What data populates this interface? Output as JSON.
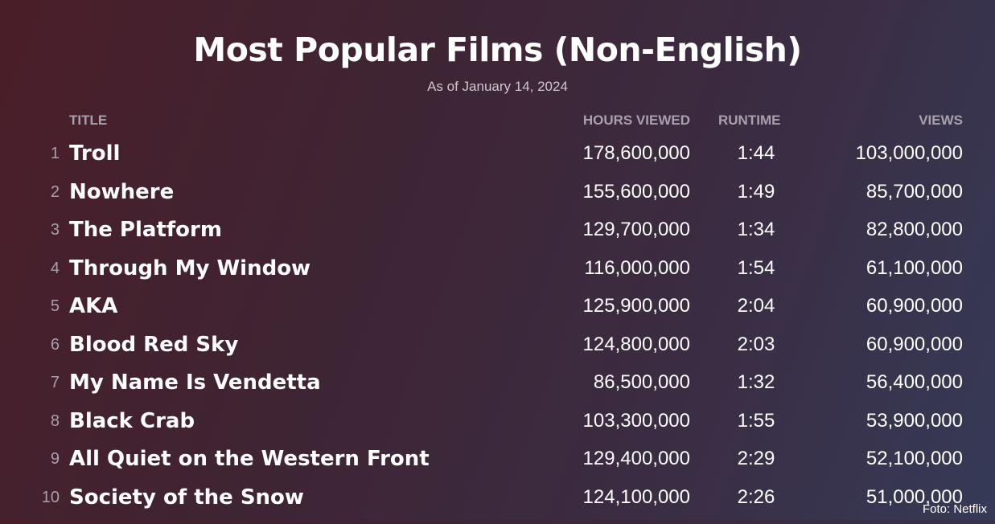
{
  "header": {
    "title": "Most Popular Films (Non-English)",
    "subtitle": "As of January 14, 2024"
  },
  "columns": {
    "title": "TITLE",
    "hours_viewed": "HOURS VIEWED",
    "runtime": "RUNTIME",
    "views": "VIEWS"
  },
  "credit": "Foto: Netflix",
  "chart_data": {
    "type": "table",
    "title": "Most Popular Films (Non-English)",
    "subtitle": "As of January 14, 2024",
    "columns": [
      "",
      "TITLE",
      "HOURS VIEWED",
      "RUNTIME",
      "VIEWS"
    ],
    "rows": [
      {
        "rank": "1",
        "title": "Troll",
        "hours_viewed": "178,600,000",
        "runtime": "1:44",
        "views": "103,000,000"
      },
      {
        "rank": "2",
        "title": "Nowhere",
        "hours_viewed": "155,600,000",
        "runtime": "1:49",
        "views": "85,700,000"
      },
      {
        "rank": "3",
        "title": "The Platform",
        "hours_viewed": "129,700,000",
        "runtime": "1:34",
        "views": "82,800,000"
      },
      {
        "rank": "4",
        "title": "Through My Window",
        "hours_viewed": "116,000,000",
        "runtime": "1:54",
        "views": "61,100,000"
      },
      {
        "rank": "5",
        "title": "AKA",
        "hours_viewed": "125,900,000",
        "runtime": "2:04",
        "views": "60,900,000"
      },
      {
        "rank": "6",
        "title": "Blood Red Sky",
        "hours_viewed": "124,800,000",
        "runtime": "2:03",
        "views": "60,900,000"
      },
      {
        "rank": "7",
        "title": "My Name Is Vendetta",
        "hours_viewed": "86,500,000",
        "runtime": "1:32",
        "views": "56,400,000"
      },
      {
        "rank": "8",
        "title": "Black Crab",
        "hours_viewed": "103,300,000",
        "runtime": "1:55",
        "views": "53,900,000"
      },
      {
        "rank": "9",
        "title": "All Quiet on the Western Front",
        "hours_viewed": "129,400,000",
        "runtime": "2:29",
        "views": "52,100,000"
      },
      {
        "rank": "10",
        "title": "Society of the Snow",
        "hours_viewed": "124,100,000",
        "runtime": "2:26",
        "views": "51,000,000"
      }
    ]
  }
}
